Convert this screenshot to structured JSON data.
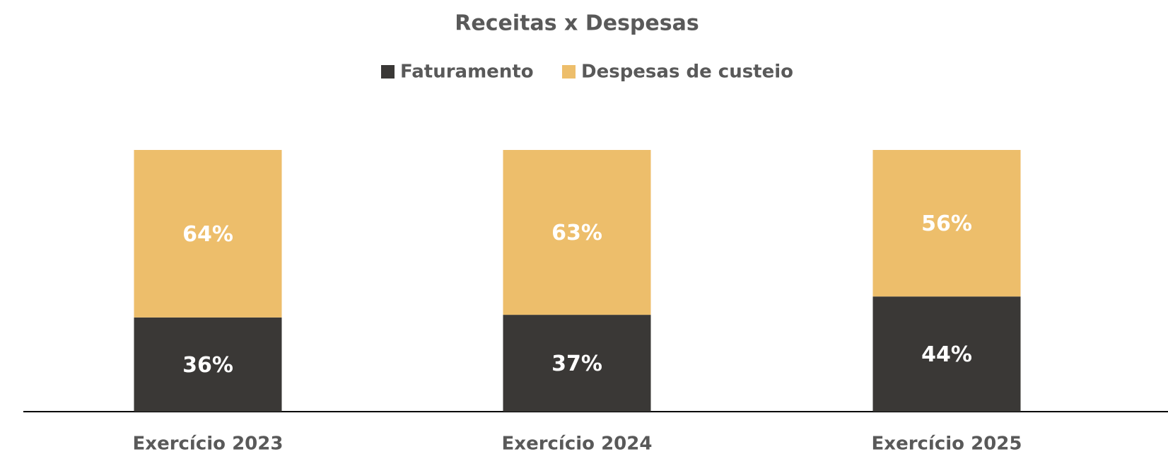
{
  "chart_data": {
    "type": "stacked_bar",
    "title": "Receitas x Despesas",
    "categories": [
      "Exercício 2023",
      "Exercício 2024",
      "Exercício 2025"
    ],
    "series": [
      {
        "name": "Faturamento",
        "color": "#3a3836",
        "values": [
          36,
          37,
          44
        ],
        "value_labels": [
          "36%",
          "37%",
          "44%"
        ]
      },
      {
        "name": "Despesas de custeio",
        "color": "#edbe6b",
        "values": [
          64,
          63,
          56
        ],
        "value_labels": [
          "64%",
          "63%",
          "56%"
        ]
      }
    ],
    "ylim": [
      0,
      100
    ],
    "legend": "top"
  }
}
